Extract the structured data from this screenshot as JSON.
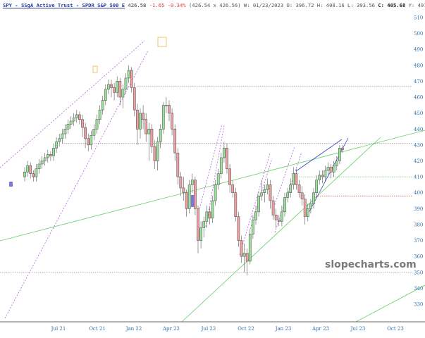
{
  "header": {
    "symbol": "SPY - SSgA Active Trust - SPDR S&P 500 E",
    "last": "426.58",
    "change": "-1.65",
    "change_pct": "-0.34%",
    "bid_ask": "(426.54 x 426.56)",
    "week": "W: 01/23/2023",
    "open": "O: 396.72",
    "high": "H: 408.16",
    "low": "L: 393.56",
    "close": "C: 405.68",
    "cursor_y": "Y: 491.77"
  },
  "watermark": "slopecharts.com",
  "colors": {
    "up": "#9be39b",
    "down": "#f0a0a0",
    "axis": "#2f6fa8",
    "trend_green": "#66cc66",
    "trend_blue": "#3344cc",
    "channel_purple": "#b060e0",
    "support_red": "#e03030"
  },
  "chart_data": {
    "type": "candlestick",
    "interval": "weekly",
    "ylim": [
      320,
      515
    ],
    "yticks": [
      510,
      500,
      490,
      480,
      470,
      460,
      450,
      440,
      430,
      420,
      410,
      400,
      390,
      380,
      370,
      360,
      350,
      340,
      330
    ],
    "xticks": [
      "Jul 21",
      "Oct 21",
      "Jan 22",
      "Apr 22",
      "Jul 22",
      "Oct 22",
      "Jan 23",
      "Apr 23",
      "Jul 23",
      "Oct 23"
    ],
    "horizontal_levels": [
      {
        "value": 467,
        "color": "#999999"
      },
      {
        "value": 431,
        "color": "#999999"
      },
      {
        "value": 410,
        "color": "#66cc66"
      },
      {
        "value": 398,
        "color": "#e03030"
      },
      {
        "value": 350,
        "color": "#999999"
      }
    ],
    "ohlc": [
      [
        410,
        416,
        407,
        413
      ],
      [
        413,
        420,
        410,
        417
      ],
      [
        417,
        419,
        409,
        412
      ],
      [
        412,
        414,
        407,
        410
      ],
      [
        410,
        418,
        407,
        415
      ],
      [
        415,
        421,
        412,
        418
      ],
      [
        418,
        423,
        415,
        420
      ],
      [
        420,
        425,
        417,
        422
      ],
      [
        422,
        427,
        419,
        424
      ],
      [
        424,
        426,
        420,
        423
      ],
      [
        423,
        431,
        420,
        428
      ],
      [
        428,
        435,
        425,
        432
      ],
      [
        432,
        437,
        429,
        434
      ],
      [
        434,
        440,
        431,
        437
      ],
      [
        437,
        443,
        434,
        440
      ],
      [
        440,
        446,
        437,
        443
      ],
      [
        443,
        448,
        440,
        445
      ],
      [
        445,
        450,
        442,
        447
      ],
      [
        447,
        452,
        444,
        449
      ],
      [
        449,
        451,
        443,
        446
      ],
      [
        446,
        449,
        435,
        441
      ],
      [
        441,
        444,
        428,
        434
      ],
      [
        434,
        437,
        426,
        430
      ],
      [
        430,
        439,
        427,
        436
      ],
      [
        436,
        443,
        433,
        440
      ],
      [
        440,
        449,
        437,
        446
      ],
      [
        446,
        455,
        443,
        452
      ],
      [
        452,
        461,
        449,
        458
      ],
      [
        458,
        468,
        455,
        465
      ],
      [
        465,
        471,
        462,
        468
      ],
      [
        468,
        471,
        460,
        466
      ],
      [
        466,
        469,
        458,
        463
      ],
      [
        463,
        473,
        460,
        470
      ],
      [
        470,
        472,
        455,
        460
      ],
      [
        460,
        468,
        453,
        465
      ],
      [
        465,
        475,
        462,
        472
      ],
      [
        472,
        480,
        469,
        477
      ],
      [
        477,
        479,
        463,
        466
      ],
      [
        466,
        469,
        448,
        452
      ],
      [
        452,
        456,
        430,
        440
      ],
      [
        440,
        453,
        434,
        450
      ],
      [
        450,
        455,
        440,
        446
      ],
      [
        446,
        450,
        432,
        437
      ],
      [
        437,
        444,
        420,
        440
      ],
      [
        440,
        443,
        425,
        429
      ],
      [
        429,
        433,
        415,
        420
      ],
      [
        420,
        435,
        414,
        432
      ],
      [
        432,
        443,
        428,
        440
      ],
      [
        440,
        457,
        437,
        455
      ],
      [
        455,
        460,
        450,
        455
      ],
      [
        455,
        458,
        445,
        450
      ],
      [
        450,
        453,
        436,
        440
      ],
      [
        440,
        443,
        420,
        425
      ],
      [
        425,
        428,
        405,
        410
      ],
      [
        410,
        413,
        398,
        403
      ],
      [
        403,
        410,
        395,
        400
      ],
      [
        400,
        402,
        385,
        390
      ],
      [
        390,
        408,
        387,
        405
      ],
      [
        405,
        412,
        400,
        408
      ],
      [
        408,
        410,
        386,
        390
      ],
      [
        390,
        392,
        362,
        370
      ],
      [
        370,
        382,
        365,
        378
      ],
      [
        378,
        385,
        372,
        382
      ],
      [
        382,
        392,
        378,
        388
      ],
      [
        388,
        391,
        380,
        384
      ],
      [
        384,
        398,
        381,
        395
      ],
      [
        395,
        408,
        392,
        405
      ],
      [
        405,
        415,
        402,
        412
      ],
      [
        412,
        425,
        409,
        422
      ],
      [
        422,
        432,
        419,
        428
      ],
      [
        428,
        431,
        412,
        415
      ],
      [
        415,
        418,
        400,
        405
      ],
      [
        405,
        408,
        397,
        400
      ],
      [
        400,
        403,
        382,
        385
      ],
      [
        385,
        388,
        366,
        370
      ],
      [
        370,
        373,
        356,
        360
      ],
      [
        360,
        368,
        350,
        362
      ],
      [
        362,
        365,
        348,
        357
      ],
      [
        357,
        377,
        355,
        374
      ],
      [
        374,
        386,
        371,
        383
      ],
      [
        383,
        392,
        380,
        388
      ],
      [
        388,
        401,
        385,
        398
      ],
      [
        398,
        408,
        395,
        400
      ],
      [
        400,
        405,
        394,
        402
      ],
      [
        402,
        409,
        399,
        405
      ],
      [
        405,
        408,
        390,
        395
      ],
      [
        395,
        398,
        383,
        386
      ],
      [
        386,
        390,
        378,
        383
      ],
      [
        383,
        386,
        379,
        382
      ],
      [
        382,
        392,
        379,
        388
      ],
      [
        388,
        400,
        385,
        397
      ],
      [
        397,
        403,
        394,
        400
      ],
      [
        400,
        409,
        397,
        405
      ],
      [
        405,
        416,
        402,
        412
      ],
      [
        412,
        415,
        402,
        405
      ],
      [
        405,
        408,
        397,
        400
      ],
      [
        400,
        404,
        392,
        396
      ],
      [
        396,
        399,
        380,
        385
      ],
      [
        385,
        393,
        382,
        390
      ],
      [
        390,
        396,
        387,
        393
      ],
      [
        393,
        403,
        390,
        400
      ],
      [
        400,
        411,
        397,
        408
      ],
      [
        408,
        414,
        405,
        411
      ],
      [
        411,
        414,
        406,
        410
      ],
      [
        410,
        417,
        407,
        414
      ],
      [
        414,
        419,
        411,
        416
      ],
      [
        416,
        418,
        409,
        413
      ],
      [
        413,
        420,
        410,
        417
      ],
      [
        417,
        423,
        414,
        420
      ],
      [
        420,
        430,
        418,
        428
      ],
      [
        428,
        430,
        425,
        427
      ]
    ]
  }
}
